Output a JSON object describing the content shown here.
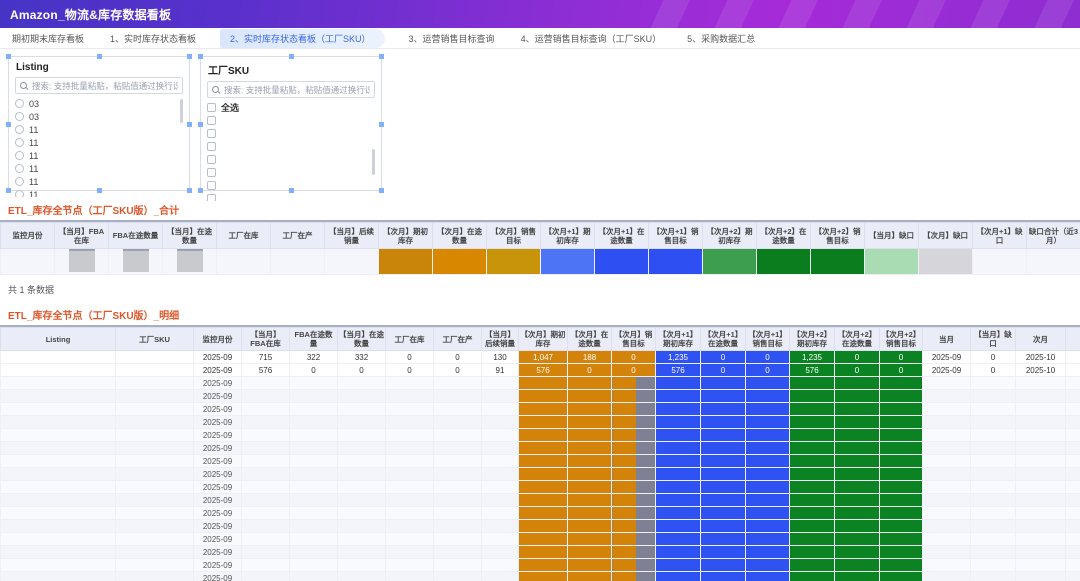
{
  "header": {
    "title": "Amazon_物流&库存数据看板"
  },
  "tabs": [
    {
      "label": "期初期末库存看板",
      "active": false
    },
    {
      "label": "1、实时库存状态看板",
      "active": false
    },
    {
      "label": "2、实时库存状态看板（工厂SKU）",
      "active": true
    },
    {
      "label": "3、运营销售目标查询",
      "active": false
    },
    {
      "label": "4、运营销售目标查询（工厂SKU）",
      "active": false
    },
    {
      "label": "5、采购数据汇总",
      "active": false
    }
  ],
  "filters": {
    "listing_panel": {
      "title": "Listing",
      "search_placeholder": "搜索: 支持批量粘贴，粘贴值通过换行识别",
      "items": [
        "03",
        "03",
        "11",
        "11",
        "11",
        "11",
        "11",
        "11"
      ]
    },
    "sku_panel": {
      "title": "工厂SKU",
      "search_placeholder": "搜索: 支持批量粘贴，粘贴值通过换行识别",
      "select_all_label": "全选",
      "blank_item_count": 7
    }
  },
  "section_total": {
    "title": "ETL_库存全节点（工厂SKU版）_合计",
    "columns": [
      "监控月份",
      "【当月】FBA在库",
      "FBA在途数量",
      "【当月】在途数量",
      "工厂在库",
      "工厂在产",
      "【当月】后续销量",
      "【次月】期初库存",
      "【次月】在途数量",
      "【次月】销售目标",
      "【次月+1】期初库存",
      "【次月+1】在途数量",
      "【次月+1】销售目标",
      "【次月+2】期初库存",
      "【次月+2】在途数量",
      "【次月+2】销售目标",
      "【当月】缺口",
      "【次月】缺口",
      "【次月+1】缺口",
      "缺口合计（近3月）"
    ],
    "row_color_classes": {
      "7": "c-o1",
      "8": "c-o2",
      "9": "c-o3",
      "10": "c-b1",
      "11": "c-b2",
      "12": "c-b2",
      "13": "c-g1",
      "14": "c-g2",
      "15": "c-g2",
      "16": "c-mint",
      "17": "c-grayc"
    },
    "redacted_columns": [
      1,
      2,
      3
    ],
    "footer": "共 1 条数据"
  },
  "section_detail": {
    "title": "ETL_库存全节点（工厂SKU版）_明细",
    "columns": [
      "Listing",
      "工厂SKU",
      "监控月份",
      "【当月】FBA在库",
      "FBA在途数量",
      "【当月】在途数量",
      "工厂在库",
      "工厂在产",
      "【当月】后续销量",
      "【次月】期初库存",
      "【次月】在途数量",
      "【次月】销售目标",
      "【次月+1】期初库存",
      "【次月+1】在途数量",
      "【次月+1】销售目标",
      "【次月+2】期初库存",
      "【次月+2】在途数量",
      "【次月+2】销售目标",
      "当月",
      "【当月】缺口",
      "次月"
    ],
    "rows": [
      [
        "",
        "",
        "2025-09",
        "715",
        "322",
        "332",
        "0",
        "0",
        "130",
        "1,047",
        "188",
        "0",
        "1,235",
        "0",
        "0",
        "1,235",
        "0",
        "0",
        "2025-09",
        "0",
        "2025-10"
      ],
      [
        "",
        "",
        "2025-09",
        "576",
        "0",
        "0",
        "0",
        "0",
        "91",
        "576",
        "0",
        "0",
        "576",
        "0",
        "0",
        "576",
        "0",
        "0",
        "2025-09",
        "0",
        "2025-10"
      ]
    ],
    "color_groups": {
      "orange": [
        9,
        10,
        11
      ],
      "blue": [
        12,
        13,
        14
      ],
      "green": [
        15,
        16,
        17
      ]
    },
    "masked_rows": {
      "count": 16,
      "month": "2025-09",
      "split_column": 11
    }
  },
  "colors": {
    "header_gradient_start": "#4634c6",
    "header_gradient_mid": "#8c2ed4",
    "header_gradient_end": "#a62bd8",
    "active_tab": "#3a66e8",
    "section_title": "#e0562a",
    "cell_orange": "#d3830a",
    "cell_blue": "#2f52f3",
    "cell_green": "#0b8322",
    "cell_mint": "#a9dcb3",
    "cell_gray": "#7e8193",
    "table_header_bg": "#eaedf7"
  }
}
